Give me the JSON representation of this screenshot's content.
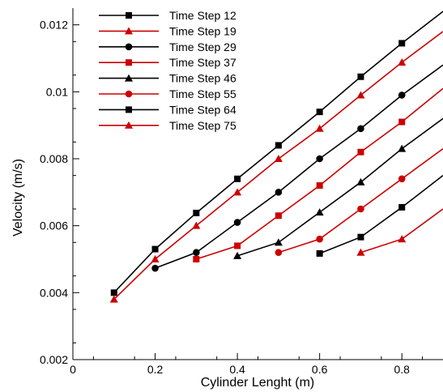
{
  "chart_data": {
    "type": "line",
    "title": "",
    "xlabel": "Cylinder Lenght (m)",
    "ylabel": "Velocity (m/s)",
    "xlim": [
      0,
      0.9
    ],
    "ylim": [
      0.002,
      0.0125
    ],
    "xticks": [
      0,
      0.2,
      0.4,
      0.6,
      0.8
    ],
    "xtick_labels": [
      "0",
      "0.2",
      "0.4",
      "0.6",
      "0.8"
    ],
    "yticks": [
      0.002,
      0.004,
      0.006,
      0.008,
      0.01,
      0.012
    ],
    "ytick_labels": [
      "0.002",
      "0.004",
      "0.006",
      "0.008",
      "0.01",
      "0.012"
    ],
    "grid": false,
    "legend_position": "top-left",
    "series": [
      {
        "name": "Time Step 12",
        "color": "#000000",
        "marker": "square",
        "x": [
          0.1,
          0.2,
          0.3,
          0.4,
          0.5,
          0.6,
          0.7,
          0.8,
          0.9
        ],
        "y": [
          0.004,
          0.0053,
          0.00638,
          0.0074,
          0.0084,
          0.0094,
          0.01045,
          0.01145,
          0.0124
        ]
      },
      {
        "name": "Time Step 19",
        "color": "#cc0000",
        "marker": "triangle",
        "x": [
          0.1,
          0.2,
          0.3,
          0.4,
          0.5,
          0.6,
          0.7,
          0.8,
          0.9
        ],
        "y": [
          0.0038,
          0.005,
          0.006,
          0.007,
          0.008,
          0.0089,
          0.0099,
          0.01088,
          0.0118
        ]
      },
      {
        "name": "Time Step 29",
        "color": "#000000",
        "marker": "circle",
        "x": [
          0.2,
          0.3,
          0.4,
          0.5,
          0.6,
          0.7,
          0.8,
          0.9
        ],
        "y": [
          0.00473,
          0.0052,
          0.0061,
          0.007,
          0.008,
          0.0089,
          0.0099,
          0.0108
        ]
      },
      {
        "name": "Time Step 37",
        "color": "#cc0000",
        "marker": "square",
        "x": [
          0.3,
          0.4,
          0.5,
          0.6,
          0.7,
          0.8,
          0.9
        ],
        "y": [
          0.005,
          0.0054,
          0.0063,
          0.0072,
          0.0082,
          0.0091,
          0.0101
        ]
      },
      {
        "name": "Time Step 46",
        "color": "#000000",
        "marker": "triangle",
        "x": [
          0.4,
          0.5,
          0.6,
          0.7,
          0.8,
          0.9
        ],
        "y": [
          0.0051,
          0.0055,
          0.0064,
          0.0073,
          0.0083,
          0.0092
        ]
      },
      {
        "name": "Time Step 55",
        "color": "#cc0000",
        "marker": "circle",
        "x": [
          0.5,
          0.6,
          0.7,
          0.8,
          0.9
        ],
        "y": [
          0.0052,
          0.0056,
          0.0065,
          0.0074,
          0.0083
        ]
      },
      {
        "name": "Time Step 64",
        "color": "#000000",
        "marker": "square",
        "x": [
          0.6,
          0.7,
          0.8,
          0.9
        ],
        "y": [
          0.00517,
          0.00566,
          0.00655,
          0.0075
        ]
      },
      {
        "name": "Time Step 75",
        "color": "#cc0000",
        "marker": "triangle",
        "x": [
          0.7,
          0.8,
          0.9
        ],
        "y": [
          0.0052,
          0.0056,
          0.0065
        ]
      }
    ]
  }
}
